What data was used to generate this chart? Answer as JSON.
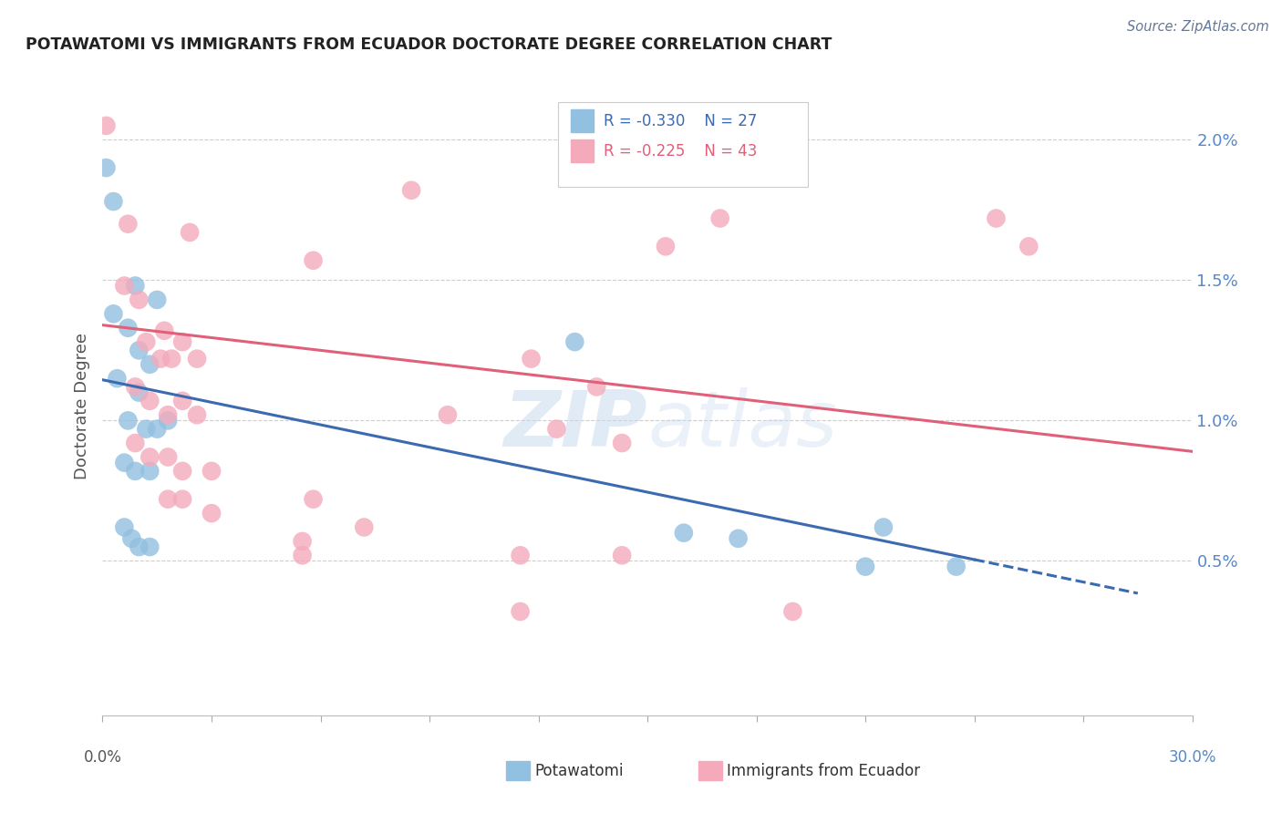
{
  "title": "POTAWATOMI VS IMMIGRANTS FROM ECUADOR DOCTORATE DEGREE CORRELATION CHART",
  "source": "Source: ZipAtlas.com",
  "ylabel": "Doctorate Degree",
  "yticks": [
    0.0,
    0.005,
    0.01,
    0.015,
    0.02
  ],
  "ytick_labels": [
    "",
    "0.5%",
    "1.0%",
    "1.5%",
    "2.0%"
  ],
  "xlim": [
    0.0,
    0.3
  ],
  "ylim": [
    -0.0005,
    0.0215
  ],
  "watermark": "ZIPAtlas",
  "legend": {
    "blue_r": -0.33,
    "blue_n": 27,
    "pink_r": -0.225,
    "pink_n": 43
  },
  "blue_points": [
    [
      0.001,
      0.019
    ],
    [
      0.003,
      0.0178
    ],
    [
      0.009,
      0.0148
    ],
    [
      0.015,
      0.0143
    ],
    [
      0.003,
      0.0138
    ],
    [
      0.007,
      0.0133
    ],
    [
      0.01,
      0.0125
    ],
    [
      0.013,
      0.012
    ],
    [
      0.004,
      0.0115
    ],
    [
      0.01,
      0.011
    ],
    [
      0.007,
      0.01
    ],
    [
      0.012,
      0.0097
    ],
    [
      0.015,
      0.0097
    ],
    [
      0.018,
      0.01
    ],
    [
      0.006,
      0.0085
    ],
    [
      0.009,
      0.0082
    ],
    [
      0.013,
      0.0082
    ],
    [
      0.006,
      0.0062
    ],
    [
      0.008,
      0.0058
    ],
    [
      0.01,
      0.0055
    ],
    [
      0.013,
      0.0055
    ],
    [
      0.13,
      0.0128
    ],
    [
      0.16,
      0.006
    ],
    [
      0.175,
      0.0058
    ],
    [
      0.215,
      0.0062
    ],
    [
      0.21,
      0.0048
    ],
    [
      0.235,
      0.0048
    ]
  ],
  "pink_points": [
    [
      0.001,
      0.0205
    ],
    [
      0.007,
      0.017
    ],
    [
      0.024,
      0.0167
    ],
    [
      0.006,
      0.0148
    ],
    [
      0.01,
      0.0143
    ],
    [
      0.017,
      0.0132
    ],
    [
      0.058,
      0.0157
    ],
    [
      0.012,
      0.0128
    ],
    [
      0.016,
      0.0122
    ],
    [
      0.019,
      0.0122
    ],
    [
      0.022,
      0.0128
    ],
    [
      0.026,
      0.0122
    ],
    [
      0.009,
      0.0112
    ],
    [
      0.013,
      0.0107
    ],
    [
      0.018,
      0.0102
    ],
    [
      0.022,
      0.0107
    ],
    [
      0.026,
      0.0102
    ],
    [
      0.009,
      0.0092
    ],
    [
      0.013,
      0.0087
    ],
    [
      0.018,
      0.0087
    ],
    [
      0.022,
      0.0082
    ],
    [
      0.03,
      0.0082
    ],
    [
      0.018,
      0.0072
    ],
    [
      0.022,
      0.0072
    ],
    [
      0.03,
      0.0067
    ],
    [
      0.058,
      0.0072
    ],
    [
      0.055,
      0.0057
    ],
    [
      0.072,
      0.0062
    ],
    [
      0.118,
      0.0122
    ],
    [
      0.136,
      0.0112
    ],
    [
      0.125,
      0.0097
    ],
    [
      0.143,
      0.0092
    ],
    [
      0.055,
      0.0052
    ],
    [
      0.143,
      0.0052
    ],
    [
      0.115,
      0.0032
    ],
    [
      0.19,
      0.0032
    ],
    [
      0.085,
      0.0182
    ],
    [
      0.095,
      0.0102
    ],
    [
      0.246,
      0.0172
    ],
    [
      0.255,
      0.0162
    ],
    [
      0.155,
      0.0162
    ],
    [
      0.17,
      0.0172
    ],
    [
      0.115,
      0.0052
    ]
  ],
  "blue_line": {
    "x0": 0.0,
    "y0": 0.01145,
    "x1": 0.285,
    "y1": 0.00385
  },
  "blue_line_dash_start": 0.24,
  "pink_line": {
    "x0": 0.0,
    "y0": 0.0134,
    "x1": 0.3,
    "y1": 0.0089
  },
  "blue_color": "#92C0E0",
  "pink_color": "#F4AABB",
  "blue_line_color": "#3B6AB0",
  "pink_line_color": "#E0607A",
  "background_color": "#FFFFFF",
  "grid_color": "#CCCCDD",
  "tick_color": "#888888",
  "label_color": "#555555",
  "right_tick_color": "#5588CC"
}
